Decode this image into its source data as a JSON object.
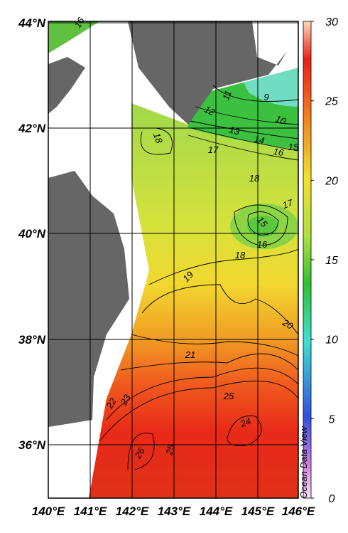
{
  "map": {
    "lat_labels": [
      "44°N",
      "42°N",
      "40°N",
      "38°N",
      "36°N"
    ],
    "lon_labels": [
      "140°E",
      "141°E",
      "142°E",
      "143°E",
      "144°E",
      "145°E",
      "146°E"
    ],
    "contour_labels": [
      "16",
      "11",
      "9",
      "12",
      "10",
      "13",
      "14",
      "16",
      "15",
      "18",
      "17",
      "18",
      "17",
      "15",
      "16",
      "18",
      "19",
      "20",
      "21",
      "22",
      "23",
      "25",
      "24",
      "26",
      "25"
    ],
    "watermark": "Ocean Data View"
  },
  "colorbar": {
    "lim": [
      0,
      30
    ],
    "ticks": [
      0,
      5,
      10,
      15,
      20,
      25,
      30
    ]
  }
}
